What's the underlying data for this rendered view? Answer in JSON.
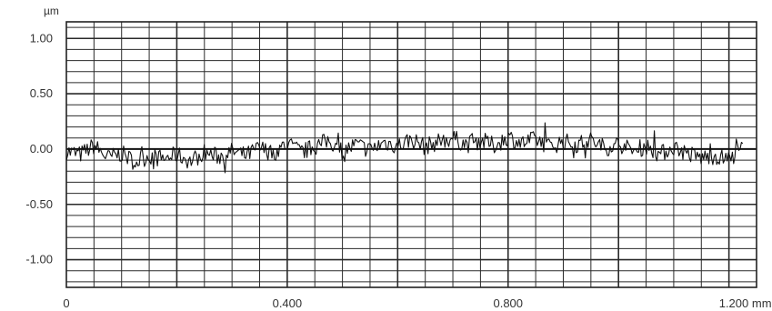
{
  "chart_data": {
    "type": "line",
    "title": "",
    "xlabel": "",
    "ylabel": "",
    "y_unit": "µm",
    "x_unit": "mm",
    "xlim": [
      0,
      1.25
    ],
    "ylim": [
      -1.25,
      1.15
    ],
    "grid": true,
    "x_ticks": [
      {
        "value": 0,
        "label": "0"
      },
      {
        "value": 0.4,
        "label": "0.400"
      },
      {
        "value": 0.8,
        "label": "0.800"
      },
      {
        "value": 1.2,
        "label": "1.200 mm"
      }
    ],
    "y_ticks": [
      {
        "value": 1.0,
        "label": "1.00"
      },
      {
        "value": 0.5,
        "label": "0.50"
      },
      {
        "value": 0.0,
        "label": "0.00"
      },
      {
        "value": -0.5,
        "label": "-0.50"
      },
      {
        "value": -1.0,
        "label": "-1.00"
      }
    ],
    "series": [
      {
        "line_color": "#111111",
        "x": [
          0.0,
          0.025,
          0.05,
          0.075,
          0.1,
          0.125,
          0.15,
          0.175,
          0.2,
          0.225,
          0.25,
          0.275,
          0.3,
          0.325,
          0.35,
          0.375,
          0.4,
          0.425,
          0.45,
          0.475,
          0.5,
          0.525,
          0.55,
          0.575,
          0.6,
          0.625,
          0.65,
          0.675,
          0.7,
          0.725,
          0.75,
          0.775,
          0.8,
          0.825,
          0.85,
          0.875,
          0.9,
          0.925,
          0.95,
          0.975,
          1.0,
          1.025,
          1.05,
          1.075,
          1.1,
          1.125,
          1.15,
          1.175,
          1.2,
          1.225
        ],
        "y": [
          -0.02,
          -0.05,
          0.03,
          -0.08,
          -0.04,
          -0.12,
          -0.06,
          -0.09,
          -0.05,
          -0.11,
          -0.03,
          -0.07,
          -0.02,
          -0.06,
          0.01,
          -0.04,
          0.05,
          -0.03,
          0.02,
          0.08,
          -0.02,
          0.04,
          -0.01,
          0.06,
          0.03,
          0.09,
          0.02,
          0.07,
          0.1,
          0.04,
          0.08,
          0.03,
          0.11,
          0.05,
          0.09,
          0.02,
          0.07,
          0.04,
          0.08,
          0.01,
          0.05,
          -0.02,
          0.03,
          -0.05,
          0.02,
          -0.04,
          -0.08,
          -0.06,
          -0.1,
          0.02
        ]
      }
    ]
  }
}
